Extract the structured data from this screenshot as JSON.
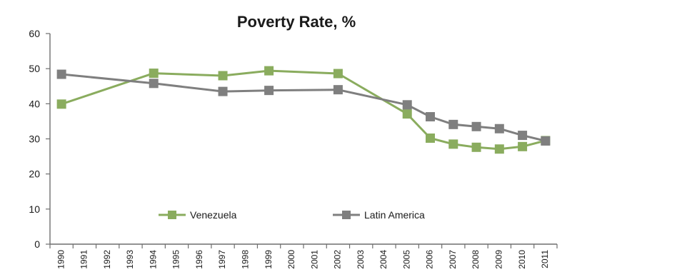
{
  "chart_data": {
    "type": "line",
    "title": "Poverty Rate, %",
    "xlabel": "",
    "ylabel": "",
    "ylim": [
      0,
      60
    ],
    "yticks": [
      0,
      10,
      20,
      30,
      40,
      50,
      60
    ],
    "categories": [
      "1990",
      "1991",
      "1992",
      "1993",
      "1994",
      "1995",
      "1996",
      "1997",
      "1998",
      "1999",
      "2000",
      "2001",
      "2002",
      "2003",
      "2004",
      "2005",
      "2006",
      "2007",
      "2008",
      "2009",
      "2010",
      "2011"
    ],
    "series": [
      {
        "name": "Venezuela",
        "color": "#8aac5e",
        "points": [
          {
            "x": "1990",
            "y": 39.9
          },
          {
            "x": "1994",
            "y": 48.7
          },
          {
            "x": "1997",
            "y": 48.0
          },
          {
            "x": "1999",
            "y": 49.4
          },
          {
            "x": "2002",
            "y": 48.6
          },
          {
            "x": "2005",
            "y": 37.1
          },
          {
            "x": "2006",
            "y": 30.2
          },
          {
            "x": "2007",
            "y": 28.5
          },
          {
            "x": "2008",
            "y": 27.6
          },
          {
            "x": "2009",
            "y": 27.1
          },
          {
            "x": "2010",
            "y": 27.8
          },
          {
            "x": "2011",
            "y": 29.5
          }
        ]
      },
      {
        "name": "Latin America",
        "color": "#7f7f7f",
        "points": [
          {
            "x": "1990",
            "y": 48.4
          },
          {
            "x": "1994",
            "y": 45.8
          },
          {
            "x": "1997",
            "y": 43.5
          },
          {
            "x": "1999",
            "y": 43.8
          },
          {
            "x": "2002",
            "y": 44.0
          },
          {
            "x": "2005",
            "y": 39.7
          },
          {
            "x": "2006",
            "y": 36.3
          },
          {
            "x": "2007",
            "y": 34.1
          },
          {
            "x": "2008",
            "y": 33.5
          },
          {
            "x": "2009",
            "y": 32.9
          },
          {
            "x": "2010",
            "y": 31.0
          },
          {
            "x": "2011",
            "y": 29.4
          }
        ]
      }
    ],
    "legend": "inside-bottom",
    "grid": false
  }
}
